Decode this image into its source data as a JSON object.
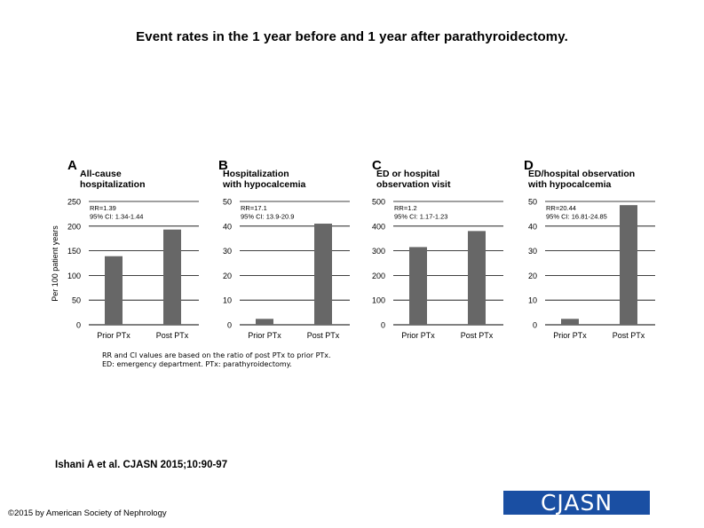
{
  "title": "Event rates in the 1 year before and 1 year after parathyroidectomy.",
  "shared_ylabel": "Per 100 patient years",
  "footnote_lines": [
    "RR and CI values are based on the ratio of post PTx to prior PTx.",
    "ED: emergency department. PTx: parathyroidectomy."
  ],
  "citation": "Ishani A et al. CJASN 2015;10:90-97",
  "copyright": "©2015 by American Society of Nephrology",
  "logo": "CJASN",
  "colors": {
    "bar": "#676767",
    "grid": "#000000",
    "logo_bg": "#1a4fa3"
  },
  "chart_data": [
    {
      "type": "bar",
      "panel": "A",
      "title_lines": [
        "All-cause",
        "hospitalization"
      ],
      "categories": [
        "Prior PTx",
        "Post PTx"
      ],
      "values": [
        139,
        193
      ],
      "ylim": [
        0,
        250
      ],
      "yticks": [
        0,
        50,
        100,
        150,
        200,
        250
      ],
      "ylabel": "Per 100 patient years",
      "annotation": [
        "RR=1.39",
        "95% CI: 1.34-1.44"
      ]
    },
    {
      "type": "bar",
      "panel": "B",
      "title_lines": [
        "Hospitalization",
        "with hypocalcemia"
      ],
      "categories": [
        "Prior PTx",
        "Post PTx"
      ],
      "values": [
        2.4,
        41
      ],
      "ylim": [
        0,
        50
      ],
      "yticks": [
        0,
        10,
        20,
        30,
        40,
        50
      ],
      "ylabel": "",
      "annotation": [
        "RR=17.1",
        "95% CI: 13.9-20.9"
      ]
    },
    {
      "type": "bar",
      "panel": "C",
      "title_lines": [
        "ED or hospital",
        "observation visit"
      ],
      "categories": [
        "Prior PTx",
        "Post PTx"
      ],
      "values": [
        315,
        380
      ],
      "ylim": [
        0,
        500
      ],
      "yticks": [
        0,
        100,
        200,
        300,
        400,
        500
      ],
      "ylabel": "",
      "annotation": [
        "RR=1.2",
        "95% CI: 1.17-1.23"
      ]
    },
    {
      "type": "bar",
      "panel": "D",
      "title_lines": [
        "ED/hospital observation",
        "with hypocalcemia"
      ],
      "categories": [
        "Prior PTx",
        "Post PTx"
      ],
      "values": [
        2.4,
        48.5
      ],
      "ylim": [
        0,
        50
      ],
      "yticks": [
        0,
        10,
        20,
        30,
        40,
        50
      ],
      "ylabel": "",
      "annotation": [
        "RR=20.44",
        "95% CI: 16.81-24.85"
      ]
    }
  ]
}
